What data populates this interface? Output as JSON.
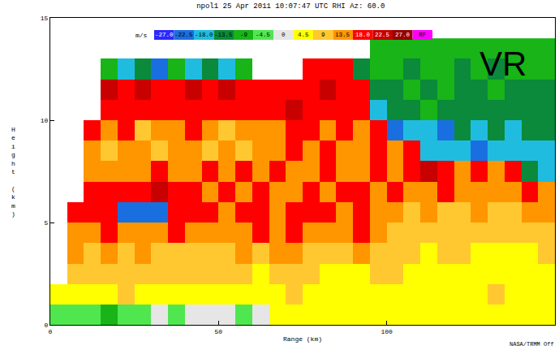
{
  "chart_data": {
    "type": "heatmap",
    "title": "npol1 25 Apr 2011 10:07:47 UTC RHI Az: 60.0",
    "annotations": [
      "VR",
      "NASA/TRMM Off"
    ],
    "x_label": "Range (km)",
    "y_label": "Height (km)",
    "x": [
      2.5,
      7.5,
      12.5,
      17.5,
      22.5,
      27.5,
      32.5,
      37.5,
      42.5,
      47.5,
      52.5,
      57.5,
      62.5,
      67.5,
      72.5,
      77.5,
      82.5,
      87.5,
      92.5,
      97.5,
      102.5,
      107.5,
      112.5,
      117.5,
      122.5,
      127.5,
      132.5,
      137.5,
      142.5,
      147.5
    ],
    "y": [
      0.5,
      1.5,
      2.5,
      3.5,
      4.5,
      5.5,
      6.5,
      7.5,
      8.5,
      9.5,
      10.5,
      11.5,
      12.5,
      13.5
    ],
    "z": [
      [
        -2,
        -2,
        -2,
        -7,
        -2,
        -2,
        2,
        -2,
        2,
        2,
        2,
        -2,
        2,
        6,
        6,
        6,
        6,
        6,
        6,
        6,
        6,
        6,
        6,
        6,
        6,
        6,
        6,
        6,
        6,
        6
      ],
      [
        6,
        6,
        6,
        6,
        11,
        6,
        6,
        6,
        6,
        6,
        6,
        6,
        6,
        6,
        11,
        6,
        6,
        6,
        6,
        6,
        6,
        6,
        6,
        6,
        6,
        6,
        11,
        6,
        6,
        6
      ],
      [
        null,
        11,
        11,
        11,
        11,
        11,
        11,
        11,
        11,
        11,
        11,
        11,
        6,
        11,
        11,
        11,
        6,
        6,
        6,
        11,
        11,
        6,
        6,
        6,
        6,
        6,
        6,
        6,
        6,
        6
      ],
      [
        null,
        15,
        11,
        15,
        11,
        15,
        11,
        11,
        11,
        11,
        11,
        15,
        11,
        15,
        15,
        11,
        11,
        11,
        15,
        11,
        11,
        11,
        6,
        11,
        11,
        6,
        6,
        6,
        6,
        11
      ],
      [
        null,
        15,
        15,
        20,
        15,
        15,
        15,
        20,
        15,
        15,
        15,
        15,
        20,
        15,
        20,
        15,
        15,
        15,
        20,
        15,
        11,
        11,
        11,
        11,
        11,
        11,
        11,
        11,
        11,
        11
      ],
      [
        null,
        20,
        20,
        20,
        -20,
        -20,
        -20,
        20,
        20,
        20,
        15,
        20,
        20,
        15,
        20,
        20,
        20,
        15,
        20,
        15,
        15,
        11,
        15,
        11,
        11,
        15,
        11,
        11,
        15,
        15
      ],
      [
        null,
        null,
        20,
        20,
        20,
        20,
        24,
        20,
        20,
        15,
        20,
        15,
        20,
        15,
        15,
        20,
        15,
        20,
        20,
        15,
        20,
        15,
        15,
        20,
        15,
        15,
        15,
        15,
        20,
        15
      ],
      [
        null,
        null,
        15,
        15,
        15,
        15,
        20,
        15,
        15,
        20,
        15,
        20,
        15,
        20,
        15,
        15,
        20,
        15,
        15,
        20,
        15,
        20,
        24,
        20,
        15,
        20,
        15,
        20,
        -11,
        -16
      ],
      [
        null,
        null,
        15,
        11,
        15,
        15,
        11,
        15,
        15,
        11,
        15,
        11,
        15,
        15,
        20,
        15,
        20,
        15,
        15,
        20,
        15,
        20,
        -16,
        -16,
        -16,
        -20,
        -16,
        -16,
        -16,
        -16
      ],
      [
        null,
        null,
        20,
        15,
        20,
        11,
        15,
        15,
        20,
        15,
        11,
        15,
        15,
        15,
        20,
        20,
        15,
        20,
        15,
        20,
        -20,
        -16,
        -16,
        -20,
        -11,
        -16,
        -11,
        -16,
        -11,
        -11
      ],
      [
        null,
        null,
        null,
        20,
        20,
        20,
        20,
        20,
        20,
        20,
        20,
        20,
        20,
        20,
        24,
        20,
        20,
        20,
        20,
        -16,
        -11,
        -11,
        -7,
        -11,
        -11,
        -11,
        -11,
        -11,
        -11,
        -11
      ],
      [
        null,
        null,
        null,
        24,
        20,
        24,
        20,
        20,
        24,
        20,
        24,
        20,
        20,
        20,
        20,
        20,
        24,
        20,
        20,
        -11,
        -11,
        -7,
        -11,
        -7,
        -11,
        -11,
        -7,
        -11,
        -11,
        -11
      ],
      [
        null,
        null,
        null,
        -7,
        -16,
        -11,
        -20,
        -7,
        -16,
        -11,
        -16,
        -7,
        null,
        null,
        null,
        20,
        20,
        20,
        -11,
        -7,
        -7,
        -11,
        -7,
        -7,
        -11,
        -7,
        -11,
        -7,
        -7,
        -7
      ],
      [
        null,
        null,
        null,
        null,
        null,
        null,
        null,
        null,
        null,
        null,
        null,
        null,
        null,
        null,
        null,
        null,
        null,
        null,
        null,
        -7,
        -7,
        -7,
        -7,
        -7,
        -7,
        -7,
        -7,
        -7,
        -7,
        -7
      ]
    ],
    "xlim": [
      0,
      150
    ],
    "xticks": [
      0,
      50,
      100
    ],
    "ylim": [
      0,
      15
    ],
    "yticks": [
      0,
      5,
      10,
      15
    ],
    "grid": false,
    "colorbar": {
      "title": "m/s",
      "zlim": [
        -27,
        31.5
      ],
      "ticks": [
        {
          "value": -27,
          "label": "-27.0"
        },
        {
          "value": -22.5,
          "label": "-22.5"
        },
        {
          "value": -18,
          "label": "-18.0"
        },
        {
          "value": -13.5,
          "label": "-13.5"
        },
        -9,
        -4.5,
        0,
        4.5,
        9,
        13.5,
        {
          "value": 18,
          "label": "18.0"
        },
        {
          "value": 22.5,
          "label": "22.5"
        },
        {
          "value": 27,
          "label": "27.0"
        }
      ],
      "colors": [
        "#2a2aff",
        "#1a6fe0",
        "#20bce0",
        "#0a8a3a",
        "#18b418",
        "#50e650",
        "#e6e6e6",
        "#ffff00",
        "#ffc830",
        "#ff9600",
        "#ff0000",
        "#c80000",
        "#960000"
      ],
      "special": {
        "label": "RF",
        "color": "#ff00ff"
      }
    }
  }
}
